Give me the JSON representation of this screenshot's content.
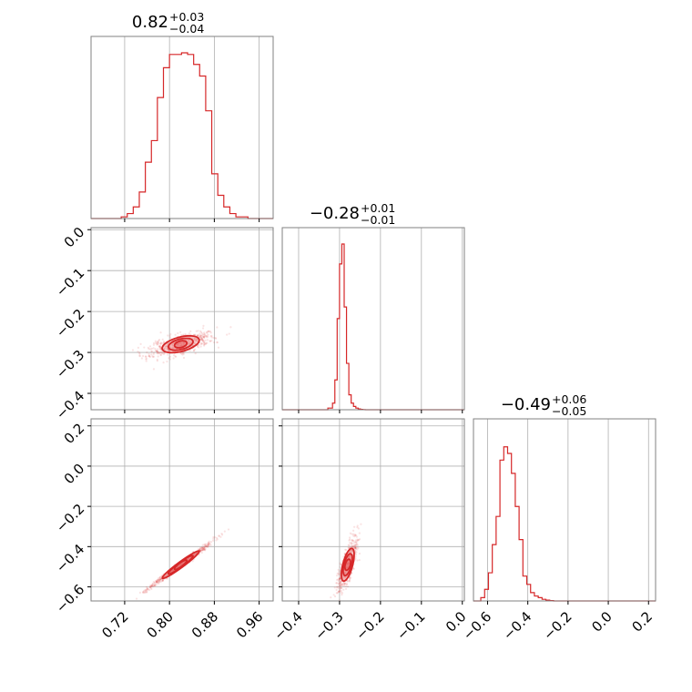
{
  "chart_data": {
    "type": "corner",
    "title": "",
    "parameters": [
      {
        "title_value": "0.82",
        "err_plus": "+0.03",
        "err_minus": "−0.04",
        "median": 0.82,
        "sigma": 0.022
      },
      {
        "title_value": "−0.28",
        "err_plus": "+0.01",
        "err_minus": "−0.01",
        "median": -0.28,
        "sigma": 0.009
      },
      {
        "title_value": "−0.49",
        "err_plus": "+0.06",
        "err_minus": "−0.05",
        "median": -0.49,
        "sigma": 0.045
      }
    ],
    "ranges": [
      [
        0.66,
        0.985
      ],
      [
        -0.44,
        0.005
      ],
      [
        -0.67,
        0.235
      ]
    ],
    "ticks": [
      {
        "values": [
          0.72,
          0.8,
          0.88,
          0.96
        ],
        "labels": [
          "0.72",
          "0.80",
          "0.88",
          "0.96"
        ]
      },
      {
        "values": [
          -0.4,
          -0.3,
          -0.2,
          -0.1,
          0.0
        ],
        "labels": [
          "−0.4",
          "−0.3",
          "−0.2",
          "−0.1",
          "0.0"
        ]
      },
      {
        "values": [
          -0.6,
          -0.4,
          -0.2,
          0.0,
          0.2
        ],
        "labels": [
          "−0.6",
          "−0.4",
          "−0.2",
          "0.0",
          "0.2"
        ]
      }
    ],
    "histograms": [
      {
        "param": 0,
        "edges": [
          0.66,
          0.7138,
          0.7246,
          0.7353,
          0.7461,
          0.7569,
          0.7677,
          0.7784,
          0.7892,
          0.8,
          0.8108,
          0.8215,
          0.8323,
          0.8431,
          0.8538,
          0.8646,
          0.8754,
          0.8862,
          0.8969,
          0.9077,
          0.9185,
          0.94,
          0.985
        ],
        "counts": [
          0,
          0.01,
          0.03,
          0.07,
          0.16,
          0.34,
          0.47,
          0.73,
          0.91,
          0.99,
          0.99,
          1.0,
          0.99,
          0.93,
          0.86,
          0.65,
          0.27,
          0.14,
          0.07,
          0.03,
          0.01,
          0
        ]
      },
      {
        "param": 1,
        "edges": [
          -0.44,
          -0.3286,
          -0.3172,
          -0.3115,
          -0.3058,
          -0.3001,
          -0.2944,
          -0.2887,
          -0.283,
          -0.2773,
          -0.2716,
          -0.2659,
          -0.2602,
          -0.2545,
          -0.2488,
          -0.2431,
          -0.2374,
          0.005
        ],
        "counts": [
          0,
          0.01,
          0.04,
          0.18,
          0.55,
          0.88,
          1.0,
          0.62,
          0.28,
          0.09,
          0.04,
          0.02,
          0.01,
          0.005,
          0.002,
          0.001,
          0
        ]
      },
      {
        "param": 2,
        "edges": [
          -0.67,
          -0.6336,
          -0.6145,
          -0.5955,
          -0.5765,
          -0.5575,
          -0.5384,
          -0.5194,
          -0.5004,
          -0.4813,
          -0.4623,
          -0.4433,
          -0.4243,
          -0.4052,
          -0.3862,
          -0.3672,
          -0.3481,
          -0.3291,
          -0.3101,
          -0.291,
          -0.272,
          0.235
        ],
        "counts": [
          0,
          0.02,
          0.07,
          0.17,
          0.34,
          0.51,
          0.85,
          0.93,
          0.89,
          0.77,
          0.57,
          0.37,
          0.15,
          0.1,
          0.05,
          0.03,
          0.02,
          0.01,
          0.005,
          0.002,
          0
        ]
      }
    ],
    "contours_2d": [
      {
        "x_param": 0,
        "y_param": 1,
        "correlation": 0.78,
        "extra_y_sigma": 0.008
      },
      {
        "x_param": 0,
        "y_param": 2,
        "correlation": 0.995,
        "extra_y_sigma": 0.004
      },
      {
        "x_param": 1,
        "y_param": 2,
        "correlation": 0.9,
        "extra_y_sigma": 0.03
      }
    ],
    "contour_levels_sigma": [
      0.5,
      1.0,
      1.5
    ],
    "series_color": "#d62728",
    "grid": true
  }
}
